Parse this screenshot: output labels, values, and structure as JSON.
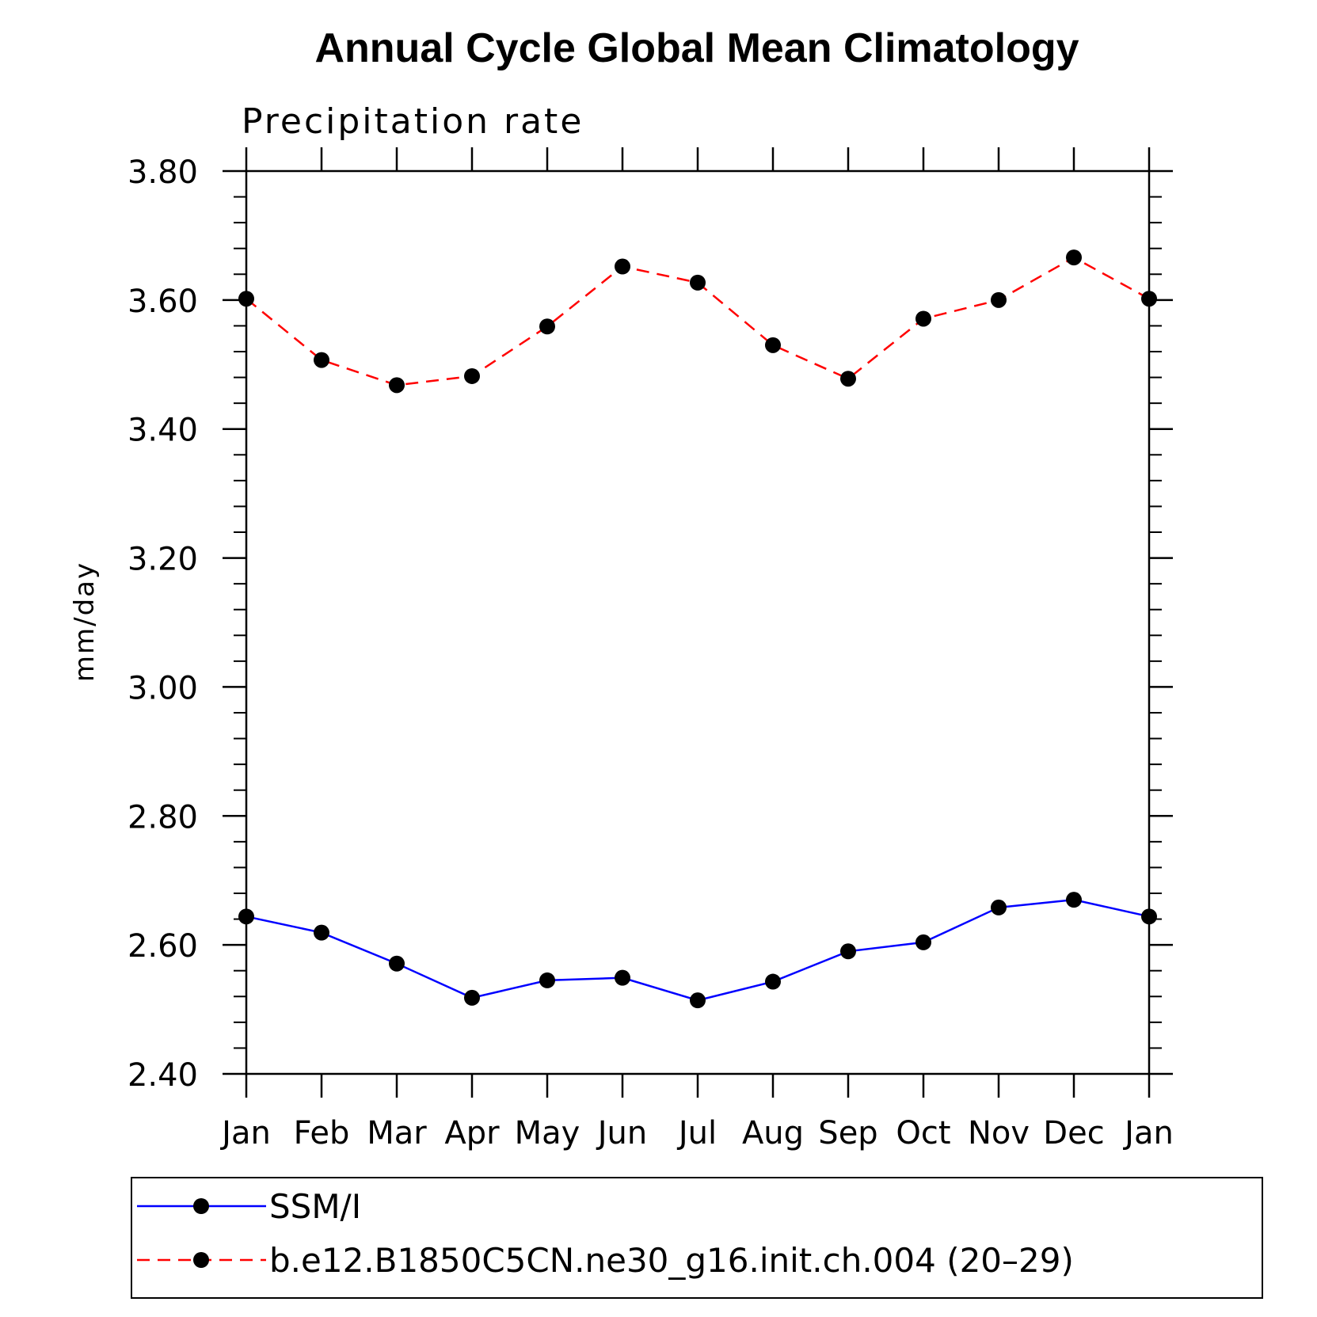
{
  "chart_data": {
    "type": "line",
    "title": "Annual Cycle Global Mean Climatology",
    "subtitle": "Precipitation rate",
    "ylabel": "mm/day",
    "ylim": [
      2.4,
      3.8
    ],
    "yticks": [
      "2.40",
      "2.60",
      "2.80",
      "3.00",
      "3.20",
      "3.40",
      "3.60",
      "3.80"
    ],
    "categories": [
      "Jan",
      "Feb",
      "Mar",
      "Apr",
      "May",
      "Jun",
      "Jul",
      "Aug",
      "Sep",
      "Oct",
      "Nov",
      "Dec",
      "Jan"
    ],
    "grid": false,
    "legend_position": "bottom",
    "series": [
      {
        "name": "SSM/I",
        "color": "#0000ff",
        "dash": "solid",
        "values": [
          2.644,
          2.619,
          2.571,
          2.518,
          2.545,
          2.549,
          2.514,
          2.543,
          2.59,
          2.604,
          2.658,
          2.67,
          2.644
        ]
      },
      {
        "name": "b.e12.B1850C5CN.ne30_g16.init.ch.004 (20–29)",
        "color": "#ff0000",
        "dash": "dashed",
        "values": [
          3.602,
          3.507,
          3.468,
          3.482,
          3.559,
          3.652,
          3.627,
          3.53,
          3.478,
          3.571,
          3.6,
          3.666,
          3.602
        ]
      }
    ]
  }
}
